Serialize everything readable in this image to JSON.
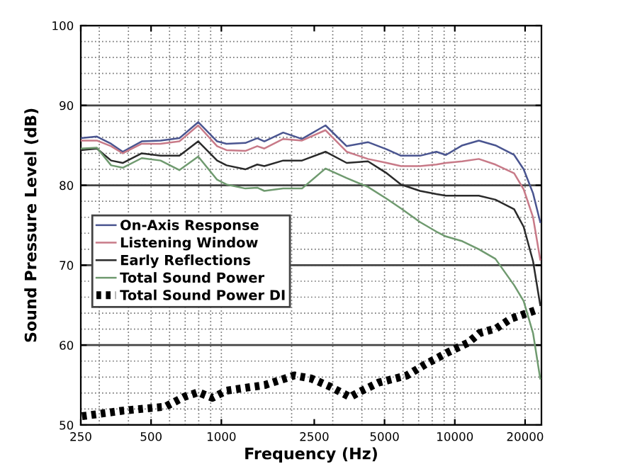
{
  "chart_data": {
    "type": "line",
    "xlabel": "Frequency (Hz)",
    "ylabel": "Sound Pressure Level (dB)",
    "log": "x",
    "x": [
      250,
      293,
      337,
      378,
      456,
      549,
      661,
      796,
      959,
      1052,
      1267,
      1425,
      1528,
      1840,
      2215,
      2793,
      3442,
      4245,
      5115,
      5880,
      7093,
      8340,
      9160,
      10770,
      12670,
      14920,
      17950,
      19720,
      21630,
      23220
    ],
    "series": [
      {
        "name": "On-Axis Response",
        "color": "#4a5590",
        "values": [
          85.9,
          86.1,
          85.2,
          84.2,
          85.5,
          85.6,
          85.9,
          87.9,
          85.5,
          85.2,
          85.3,
          85.9,
          85.5,
          86.6,
          85.8,
          87.5,
          84.9,
          85.4,
          84.5,
          83.7,
          83.7,
          84.2,
          83.8,
          85.0,
          85.6,
          85.0,
          83.8,
          82.0,
          79.0,
          75.4
        ]
      },
      {
        "name": "Listening Window",
        "color": "#c87a88",
        "values": [
          85.6,
          85.6,
          84.9,
          84.0,
          85.2,
          85.2,
          85.5,
          87.5,
          84.9,
          84.4,
          84.3,
          84.9,
          84.6,
          85.8,
          85.6,
          86.9,
          84.2,
          83.3,
          82.8,
          82.4,
          82.4,
          82.6,
          82.8,
          83.0,
          83.3,
          82.6,
          81.5,
          79.5,
          76.0,
          70.7
        ]
      },
      {
        "name": "Early Reflections",
        "color": "#2a2a2a",
        "values": [
          84.4,
          84.6,
          83.1,
          82.8,
          84.0,
          83.7,
          83.7,
          85.5,
          83.1,
          82.5,
          82.0,
          82.6,
          82.4,
          83.1,
          83.1,
          84.2,
          82.8,
          83.0,
          81.5,
          80.1,
          79.3,
          78.9,
          78.7,
          78.7,
          78.7,
          78.2,
          77.0,
          74.8,
          70.5,
          65.0
        ]
      },
      {
        "name": "Total Sound Power",
        "color": "#6f9a6f",
        "values": [
          84.6,
          84.7,
          82.5,
          82.2,
          83.4,
          83.1,
          81.9,
          83.6,
          80.7,
          80.1,
          79.6,
          79.7,
          79.3,
          79.6,
          79.6,
          82.1,
          80.9,
          79.8,
          78.3,
          77.1,
          75.4,
          74.2,
          73.6,
          73.0,
          72.0,
          70.8,
          67.5,
          65.5,
          61.5,
          55.8
        ]
      },
      {
        "name": "Total Sound Power DI",
        "color": "#000000",
        "line_style": "dotted",
        "x": [
          253,
          379,
          576,
          691,
          796,
          915,
          1052,
          1533,
          2056,
          2435,
          2923,
          3561,
          3876,
          4712,
          6237,
          7480,
          9500,
          11400,
          12750,
          15070,
          17340,
          22940
        ],
        "values": [
          51.1,
          51.8,
          52.3,
          53.5,
          54.1,
          53.4,
          54.3,
          55.0,
          56.2,
          55.8,
          54.8,
          53.5,
          54.1,
          55.3,
          56.2,
          57.6,
          59.2,
          60.3,
          61.5,
          62.1,
          63.3,
          64.5
        ]
      }
    ],
    "xlim": [
      250,
      23500
    ],
    "xticks": [
      250,
      500,
      1000,
      2500,
      5000,
      10000,
      20000
    ],
    "ylim": [
      50,
      100
    ],
    "yticks": [
      50,
      60,
      70,
      80,
      90,
      100
    ],
    "grid": true,
    "legend": "left"
  }
}
